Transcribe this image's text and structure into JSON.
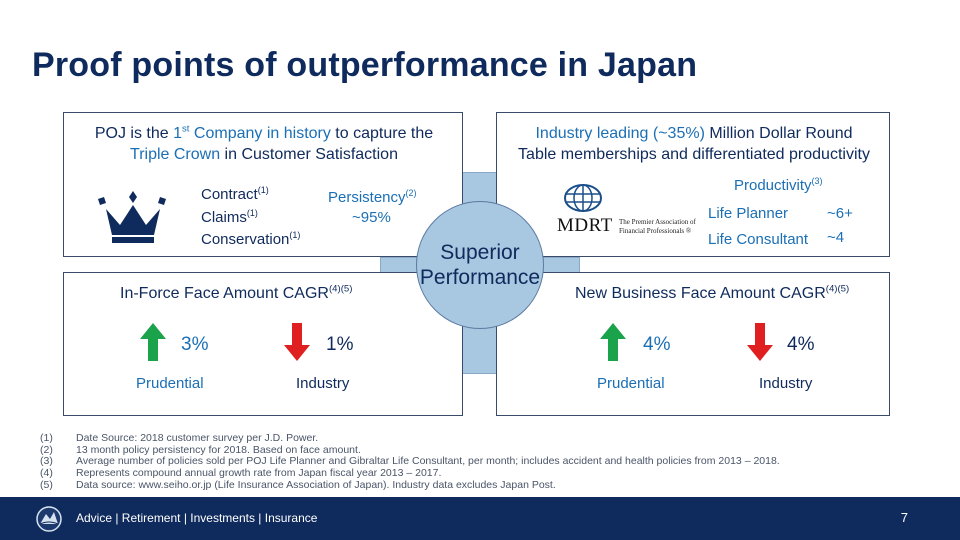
{
  "title": "Proof points of outperformance in Japan",
  "center": {
    "line1": "Superior",
    "line2": "Performance"
  },
  "top_left": {
    "h1_a": "POJ is the ",
    "h1_b": "1",
    "h1_sup": "st",
    "h1_c": " Company in history",
    "h1_d": " to capture the",
    "h2_a": "Triple Crown",
    "h2_b": " in Customer Satisfaction",
    "items": [
      {
        "label": "Contract",
        "sup": "(1)"
      },
      {
        "label": "Claims",
        "sup": "(1)"
      },
      {
        "label": "Conservation",
        "sup": "(1)"
      }
    ],
    "persistency_label": "Persistency",
    "persistency_sup": "(2)",
    "persistency_value": "~95%"
  },
  "top_right": {
    "h1_a": "Industry leading (~35%)",
    "h1_b": " Million Dollar Round",
    "h2": "Table memberships and differentiated productivity",
    "mdrt_logo": "MDRT",
    "mdrt_sub1": "The Premier Association of",
    "mdrt_sub2": "Financial Professionals ®",
    "productivity_label": "Productivity",
    "productivity_sup": "(3)",
    "rows": [
      {
        "label": "Life Planner",
        "value": "~6+"
      },
      {
        "label": "Life Consultant",
        "value": "~4"
      }
    ]
  },
  "bottom_left": {
    "heading": "In-Force Face Amount CAGR",
    "heading_sup": "(4)(5)",
    "pru_value": "3%",
    "pru_label": "Prudential",
    "ind_value": "1%",
    "ind_label": "Industry"
  },
  "bottom_right": {
    "heading": "New Business Face Amount CAGR",
    "heading_sup": "(4)(5)",
    "pru_value": "4%",
    "pru_label": "Prudential",
    "ind_value": "4%",
    "ind_label": "Industry"
  },
  "footnotes": [
    {
      "num": "(1)",
      "text": "Date Source: 2018 customer survey per J.D. Power."
    },
    {
      "num": "(2)",
      "text": "13 month policy persistency for 2018. Based on face amount."
    },
    {
      "num": "(3)",
      "text": "Average number of policies sold per POJ Life Planner and Gibraltar Life Consultant, per month; includes accident and health policies from 2013 – 2018."
    },
    {
      "num": "(4)",
      "text": "Represents compound annual growth rate from Japan fiscal year 2013 – 2017."
    },
    {
      "num": "(5)",
      "text": "Data source: www.seiho.or.jp (Life Insurance Association of Japan). Industry data excludes Japan Post."
    }
  ],
  "footer": {
    "tagline": "Advice  |  Retirement  |  Investments  |  Insurance",
    "page": "7"
  },
  "colors": {
    "navy": "#0f2a5c",
    "blue": "#1b6fb5",
    "green": "#1aa34a",
    "red": "#e02020",
    "circle": "#a8c7e0"
  },
  "icons": [
    "crown-icon",
    "mdrt-logo",
    "up-arrow-icon",
    "down-arrow-icon",
    "prudential-rock-logo"
  ]
}
